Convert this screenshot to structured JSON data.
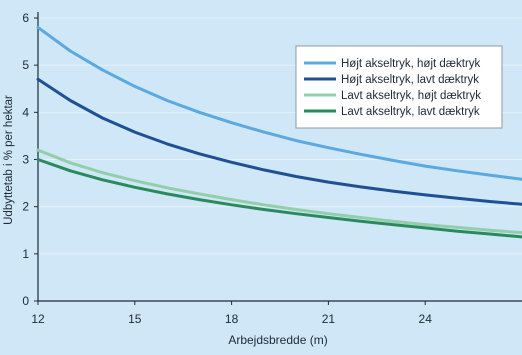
{
  "chart_data": {
    "type": "line",
    "title": "",
    "xlabel": "Arbejdsbredde (m)",
    "ylabel": "Udbyttetab i % per hektar",
    "xlim": [
      12,
      27
    ],
    "ylim": [
      0,
      6
    ],
    "x_ticks": [
      "12",
      "15",
      "18",
      "21",
      "24"
    ],
    "y_ticks": [
      "0",
      "1",
      "2",
      "3",
      "4",
      "5",
      "6"
    ],
    "grid": "horizontal",
    "legend_position": "top-right",
    "x": [
      12,
      13,
      14,
      15,
      16,
      17,
      18,
      19,
      20,
      21,
      22,
      23,
      24,
      25,
      26,
      27
    ],
    "series": [
      {
        "name": "Højt akseltryk, højt dæktryk",
        "color": "#5aa9e0",
        "values": [
          5.8,
          5.3,
          4.9,
          4.55,
          4.25,
          4.0,
          3.78,
          3.58,
          3.4,
          3.25,
          3.11,
          2.98,
          2.86,
          2.76,
          2.67,
          2.58
        ]
      },
      {
        "name": "Højt akseltryk, lavt dæktryk",
        "color": "#1f4f95",
        "values": [
          4.7,
          4.25,
          3.88,
          3.58,
          3.33,
          3.12,
          2.94,
          2.78,
          2.64,
          2.52,
          2.42,
          2.33,
          2.25,
          2.18,
          2.11,
          2.05
        ]
      },
      {
        "name": "Lavt akseltryk, højt dæktryk",
        "color": "#92cfa8",
        "values": [
          3.2,
          2.93,
          2.72,
          2.55,
          2.4,
          2.27,
          2.15,
          2.04,
          1.94,
          1.85,
          1.77,
          1.69,
          1.62,
          1.56,
          1.5,
          1.45
        ]
      },
      {
        "name": "Lavt akseltryk, lavt dæktryk",
        "color": "#2a8a5e",
        "values": [
          3.0,
          2.76,
          2.57,
          2.41,
          2.27,
          2.15,
          2.04,
          1.94,
          1.85,
          1.77,
          1.69,
          1.62,
          1.55,
          1.48,
          1.42,
          1.36
        ]
      }
    ]
  }
}
